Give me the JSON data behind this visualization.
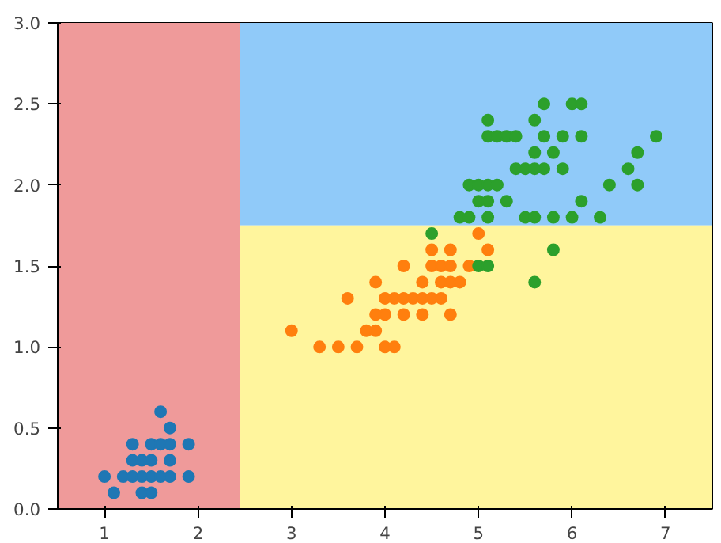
{
  "chart_data": {
    "type": "scatter",
    "marker": "circle",
    "xlim": [
      0.5,
      7.5
    ],
    "xticks": [
      1,
      2,
      3,
      4,
      5,
      6,
      7
    ],
    "ylim": [
      0,
      3
    ],
    "yticks": [
      {
        "value": 0,
        "label": "0.0"
      },
      {
        "value": 0.5,
        "label": "0.5"
      },
      {
        "value": 1,
        "label": "1.0"
      },
      {
        "value": 1.5,
        "label": "1.5"
      },
      {
        "value": 2,
        "label": "2.0"
      },
      {
        "value": 2.5,
        "label": "2.5"
      },
      {
        "value": 3,
        "label": "3.0"
      }
    ],
    "bands": [
      {
        "axis": "y",
        "from": 1.75,
        "to": 3,
        "color": "#90caf9"
      },
      {
        "axis": "y",
        "from": 0,
        "to": 1.75,
        "color": "#fff59d"
      },
      {
        "axis": "x",
        "from": 0.5,
        "to": 2.45,
        "color": "#ef9a9a"
      }
    ],
    "series": [
      {
        "color": "#1f77b4",
        "x": [
          1.6,
          1.7,
          1.3,
          1.5,
          1.6,
          1.7,
          1.9,
          1.3,
          1.4,
          1.5,
          1.7,
          1.0,
          1.2,
          1.3,
          1.4,
          1.5,
          1.6,
          1.7,
          1.9,
          1.1,
          1.4,
          1.5
        ],
        "values": [
          0.6,
          0.5,
          0.4,
          0.4,
          0.4,
          0.4,
          0.4,
          0.3,
          0.3,
          0.3,
          0.3,
          0.2,
          0.2,
          0.2,
          0.2,
          0.2,
          0.2,
          0.2,
          0.2,
          0.1,
          0.1,
          0.1
        ]
      },
      {
        "color": "#ff7f0e",
        "x": [
          5.0,
          4.5,
          4.7,
          5.1,
          4.2,
          4.5,
          4.6,
          4.7,
          4.9,
          3.9,
          4.4,
          4.6,
          4.7,
          4.8,
          3.6,
          4.0,
          4.1,
          4.2,
          4.3,
          4.4,
          4.5,
          4.6,
          3.9,
          4.0,
          4.2,
          4.4,
          4.7,
          3.0,
          3.8,
          3.9,
          3.3,
          3.5,
          3.7,
          4.0,
          4.1
        ],
        "values": [
          1.7,
          1.6,
          1.6,
          1.6,
          1.5,
          1.5,
          1.5,
          1.5,
          1.5,
          1.4,
          1.4,
          1.4,
          1.4,
          1.4,
          1.3,
          1.3,
          1.3,
          1.3,
          1.3,
          1.3,
          1.3,
          1.3,
          1.2,
          1.2,
          1.2,
          1.2,
          1.2,
          1.1,
          1.1,
          1.1,
          1.0,
          1.0,
          1.0,
          1.0,
          1.0
        ]
      },
      {
        "color": "#2ca02c",
        "x": [
          5.7,
          6.0,
          6.1,
          5.1,
          5.6,
          5.1,
          5.2,
          5.3,
          5.4,
          5.7,
          5.9,
          6.1,
          6.9,
          5.6,
          5.8,
          6.7,
          5.4,
          5.5,
          5.6,
          5.7,
          5.9,
          6.6,
          4.9,
          5.0,
          5.1,
          5.2,
          6.4,
          6.7,
          5.0,
          5.1,
          5.3,
          6.1,
          4.8,
          4.9,
          5.1,
          5.5,
          5.6,
          5.8,
          6.0,
          6.3,
          4.5,
          5.8,
          5.0,
          5.1,
          5.6
        ],
        "values": [
          2.5,
          2.5,
          2.5,
          2.4,
          2.4,
          2.3,
          2.3,
          2.3,
          2.3,
          2.3,
          2.3,
          2.3,
          2.3,
          2.2,
          2.2,
          2.2,
          2.1,
          2.1,
          2.1,
          2.1,
          2.1,
          2.1,
          2.0,
          2.0,
          2.0,
          2.0,
          2.0,
          2.0,
          1.9,
          1.9,
          1.9,
          1.9,
          1.8,
          1.8,
          1.8,
          1.8,
          1.8,
          1.8,
          1.8,
          1.8,
          1.7,
          1.6,
          1.5,
          1.5,
          1.4
        ]
      }
    ]
  }
}
